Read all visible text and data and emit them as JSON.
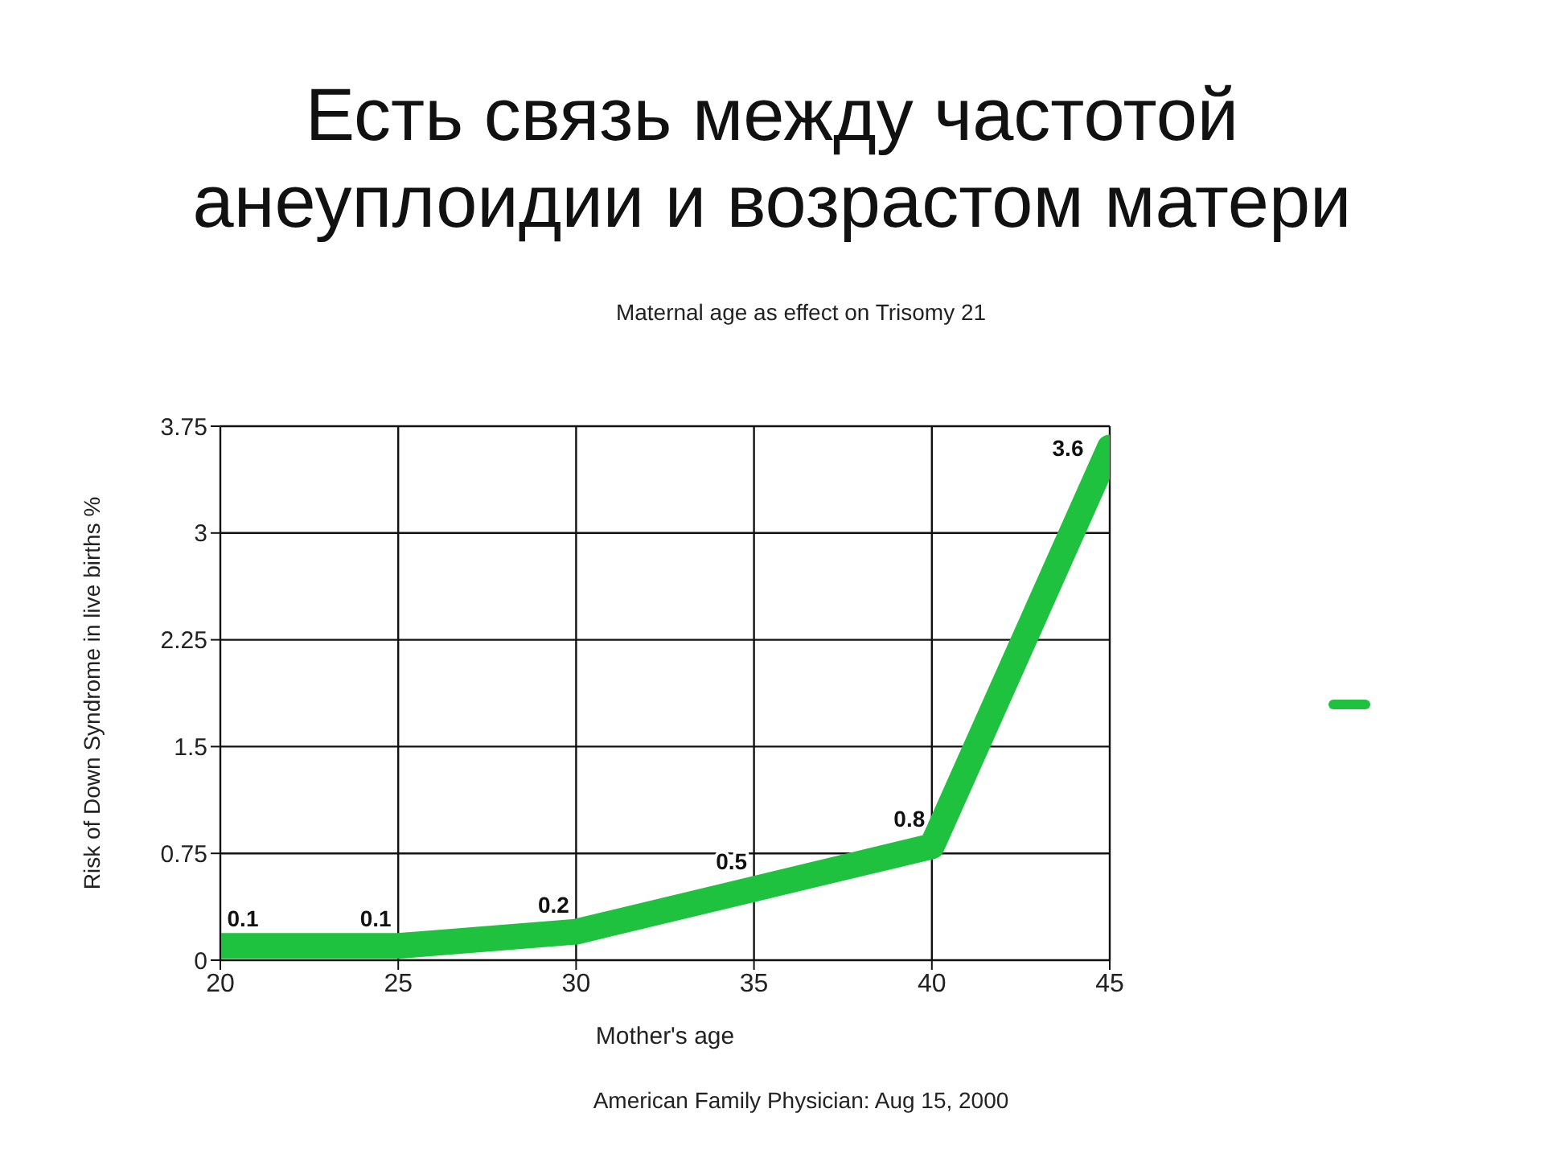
{
  "chart_data": {
    "type": "line",
    "title": "Есть связь между частотой анеуплоидии и возрастом матери",
    "subtitle": "Maternal age as effect on Trisomy 21",
    "xlabel": "Mother's age",
    "ylabel": "Risk of Down Syndrome in live births %",
    "annotations": [
      "American Family Physician: Aug 15, 2000"
    ],
    "x": [
      20,
      25,
      30,
      35,
      40,
      45
    ],
    "values": [
      0.1,
      0.1,
      0.2,
      0.5,
      0.8,
      3.6
    ],
    "color": "#1fc23f",
    "xlim": [
      20,
      45
    ],
    "xticks": [
      20,
      25,
      30,
      35,
      40,
      45
    ],
    "ylim": [
      0,
      3.75
    ],
    "yticks": [
      0,
      0.75,
      1.5,
      2.25,
      3,
      3.75
    ],
    "grid": true,
    "data_labels": true,
    "marker": "none"
  }
}
